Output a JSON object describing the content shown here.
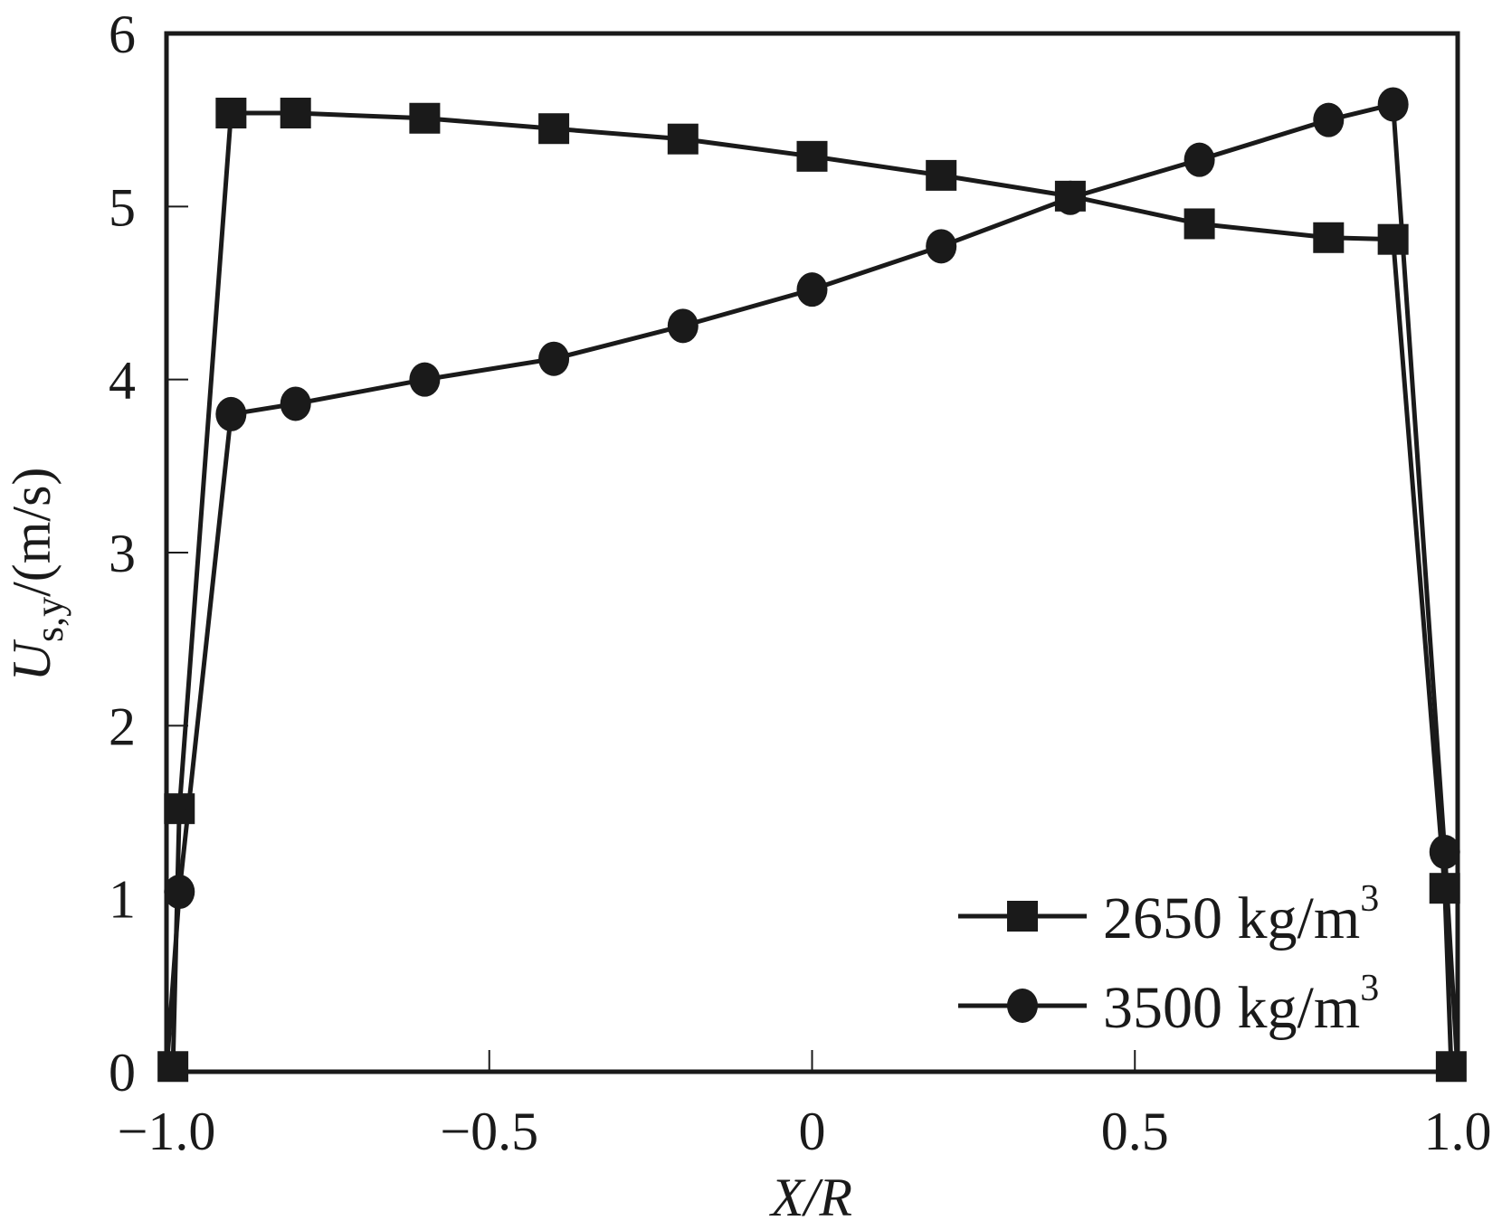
{
  "chart_data": {
    "type": "line",
    "title": "",
    "xlabel": "X/R",
    "ylabel": "U_s,y /(m/s)",
    "ylabel_parts": {
      "main": "U",
      "sub": "s,y",
      "unit": "/(m/s)"
    },
    "xlim": [
      -1.0,
      1.0
    ],
    "ylim": [
      0,
      6
    ],
    "xticks": [
      -1.0,
      -0.5,
      0,
      0.5,
      1.0
    ],
    "xtick_labels": [
      "−1.0",
      "−0.5",
      "0",
      "0.5",
      "1.0"
    ],
    "yticks": [
      0,
      1,
      2,
      3,
      4,
      5,
      6
    ],
    "ytick_labels": [
      "0",
      "1",
      "2",
      "3",
      "4",
      "5",
      "6"
    ],
    "grid": false,
    "legend_position": "bottom-right",
    "series": [
      {
        "name": "2650 kg/m3",
        "label_main": "2650 kg/m",
        "label_sup": "3",
        "marker": "square",
        "color": "#1a1a1a",
        "x": [
          -1.0,
          -0.99,
          -0.98,
          -0.9,
          -0.8,
          -0.6,
          -0.4,
          -0.2,
          0,
          0.2,
          0.4,
          0.6,
          0.8,
          0.9,
          0.98,
          0.99
        ],
        "y": [
          0,
          0.03,
          1.52,
          5.54,
          5.54,
          5.51,
          5.45,
          5.39,
          5.29,
          5.18,
          5.06,
          4.9,
          4.82,
          4.81,
          1.06,
          0.03
        ]
      },
      {
        "name": "3500 kg/m3",
        "label_main": "3500 kg/m",
        "label_sup": "3",
        "marker": "circle",
        "color": "#1a1a1a",
        "x": [
          -1.0,
          -0.98,
          -0.9,
          -0.8,
          -0.6,
          -0.4,
          -0.2,
          0,
          0.2,
          0.4,
          0.6,
          0.8,
          0.9,
          0.98,
          1.0
        ],
        "y": [
          0,
          1.04,
          3.8,
          3.86,
          4.0,
          4.12,
          4.31,
          4.52,
          4.77,
          5.05,
          5.27,
          5.5,
          5.59,
          1.27,
          0
        ]
      }
    ]
  }
}
